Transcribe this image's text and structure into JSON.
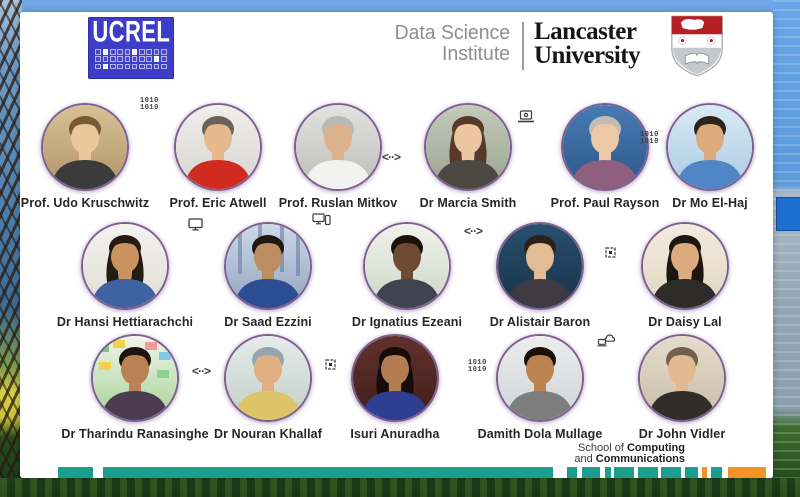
{
  "header": {
    "ucrel_logo_text": "UCREL",
    "dsi_line1": "Data Science",
    "dsi_line2": "Institute",
    "lancaster_line1": "Lancaster",
    "lancaster_line2": "University"
  },
  "people": {
    "rows": [
      {
        "members": [
          {
            "name": "Prof. Udo Kruschwitz"
          },
          {
            "name": "Prof. Eric Atwell"
          },
          {
            "name": "Prof. Ruslan Mitkov"
          },
          {
            "name": "Dr Marcia Smith"
          },
          {
            "name": "Prof. Paul Rayson"
          },
          {
            "name": "Dr Mo El-Haj"
          }
        ]
      },
      {
        "members": [
          {
            "name": "Dr Hansi Hettiarachchi"
          },
          {
            "name": "Dr Saad Ezzini"
          },
          {
            "name": "Dr Ignatius Ezeani"
          },
          {
            "name": "Dr Alistair Baron"
          },
          {
            "name": "Dr Daisy Lal"
          }
        ]
      },
      {
        "members": [
          {
            "name": "Dr Tharindu Ranasinghe"
          },
          {
            "name": "Dr Nouran Khallaf"
          },
          {
            "name": "Isuri Anuradha"
          },
          {
            "name": "Damith Dola Mullage"
          },
          {
            "name": "Dr John Vidler"
          }
        ]
      }
    ]
  },
  "badges": [
    {
      "icon": "binary-code-icon"
    },
    {
      "icon": "code-brackets-icon"
    },
    {
      "icon": "laptop-icon"
    },
    {
      "icon": "binary-code-icon"
    },
    {
      "icon": "monitor-icon"
    },
    {
      "icon": "devices-icon"
    },
    {
      "icon": "code-brackets-icon"
    },
    {
      "icon": "chip-icon"
    },
    {
      "icon": "code-brackets-icon"
    },
    {
      "icon": "chip-icon"
    },
    {
      "icon": "binary-code-icon"
    },
    {
      "icon": "cloud-computing-icon"
    }
  ],
  "icon_glyphs": {
    "binary_line": "1010",
    "code_brackets": "<··>"
  },
  "footer": {
    "line1_normal": "School of ",
    "line1_bold": "Computing",
    "line2_normal": "and ",
    "line2_bold": "Communications"
  },
  "colors": {
    "teal": "#1b9e8e",
    "orange": "#f09425",
    "ucrel_blue": "#3d3dc8",
    "lancaster_red": "#b61f24",
    "ring_purple": "#7d5f90"
  }
}
